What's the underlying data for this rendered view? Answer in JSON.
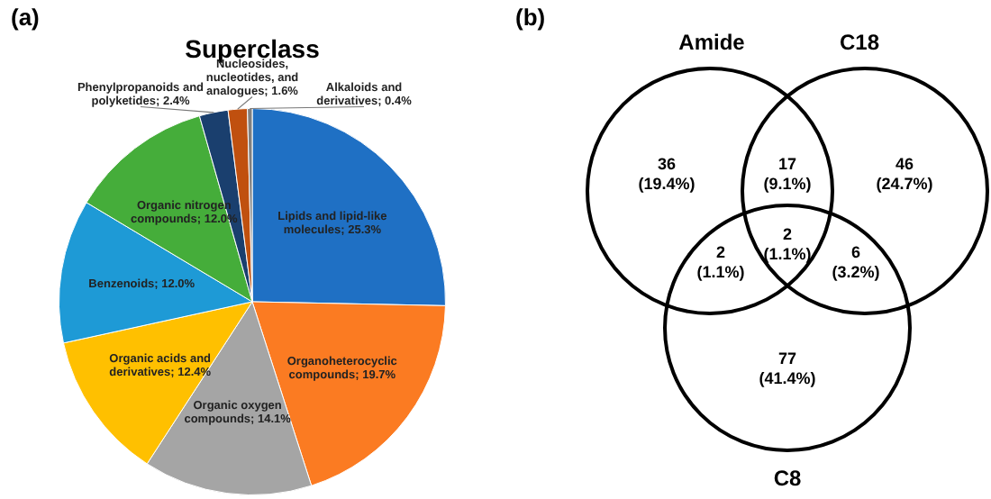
{
  "chart_data": [
    {
      "type": "pie",
      "title": "Superclass",
      "annotations": [
        "(a)"
      ],
      "legend": false,
      "categories": [
        "Lipids and lipid-like molecules",
        "Organoheterocyclic compounds",
        "Organic oxygen compounds",
        "Organic acids and derivatives",
        "Benzenoids",
        "Organic nitrogen compounds",
        "Phenylpropanoids and polyketides",
        "Nucleosides, nucleotides, and analogues",
        "Alkaloids and derivatives"
      ],
      "values": [
        25.3,
        19.7,
        14.1,
        12.4,
        12.0,
        12.0,
        2.4,
        1.6,
        0.4
      ],
      "value_labels": [
        "25.3%",
        "19.7%",
        "14.1%",
        "12.4%",
        "12.0%",
        "12.0%",
        "2.4%",
        "1.6%",
        "0.4%"
      ],
      "colors": [
        "#1f70c4",
        "#fb7b22",
        "#a5a5a5",
        "#ffc000",
        "#1e9ad6",
        "#45ad3a",
        "#1a3f6e",
        "#c0500f",
        "#7f7f7f"
      ]
    },
    {
      "type": "other",
      "annotations": [
        "(b)",
        "Amide",
        "C18",
        "C8",
        "(19.4%)",
        "(9.1%)",
        "(24.7%)",
        "(1.1%)",
        "(1.1%)",
        "(3.2%)",
        "(41.4%)"
      ],
      "categories": [
        null,
        null,
        null,
        null,
        null,
        null,
        null
      ],
      "values": [
        36,
        17,
        46,
        2,
        2,
        6,
        77
      ],
      "data_labels": true
    }
  ]
}
